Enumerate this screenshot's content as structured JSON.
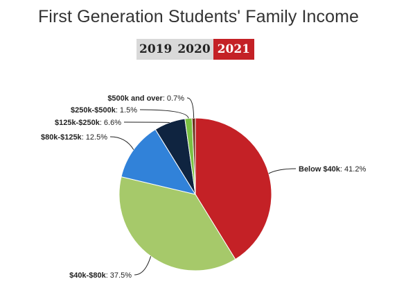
{
  "header": {
    "title": "First Generation Students' Family Income"
  },
  "year_tabs": {
    "items": [
      "2019",
      "2020",
      "2021"
    ],
    "active": "2021"
  },
  "chart_data": {
    "type": "pie",
    "title": "First Generation Students' Family Income",
    "slices": [
      {
        "label": "Below $40k",
        "value": 41.2,
        "display": "41.2%",
        "color": "#c42126"
      },
      {
        "label": "$40k-$80k",
        "value": 37.5,
        "display": "37.5%",
        "color": "#a6c96a"
      },
      {
        "label": "$80k-$125k",
        "value": 12.5,
        "display": "12.5%",
        "color": "#3182d9"
      },
      {
        "label": "$125k-$250k",
        "value": 6.6,
        "display": "6.6%",
        "color": "#0f2440"
      },
      {
        "label": "$250k-$500k",
        "value": 1.5,
        "display": "1.5%",
        "color": "#7ac143"
      },
      {
        "label": "$500k and over",
        "value": 0.7,
        "display": "0.7%",
        "color": "#6b2f1a"
      }
    ],
    "start_angle": "12 o'clock",
    "direction": "clockwise",
    "legend": "none",
    "data_labels": "outside with leader lines"
  }
}
